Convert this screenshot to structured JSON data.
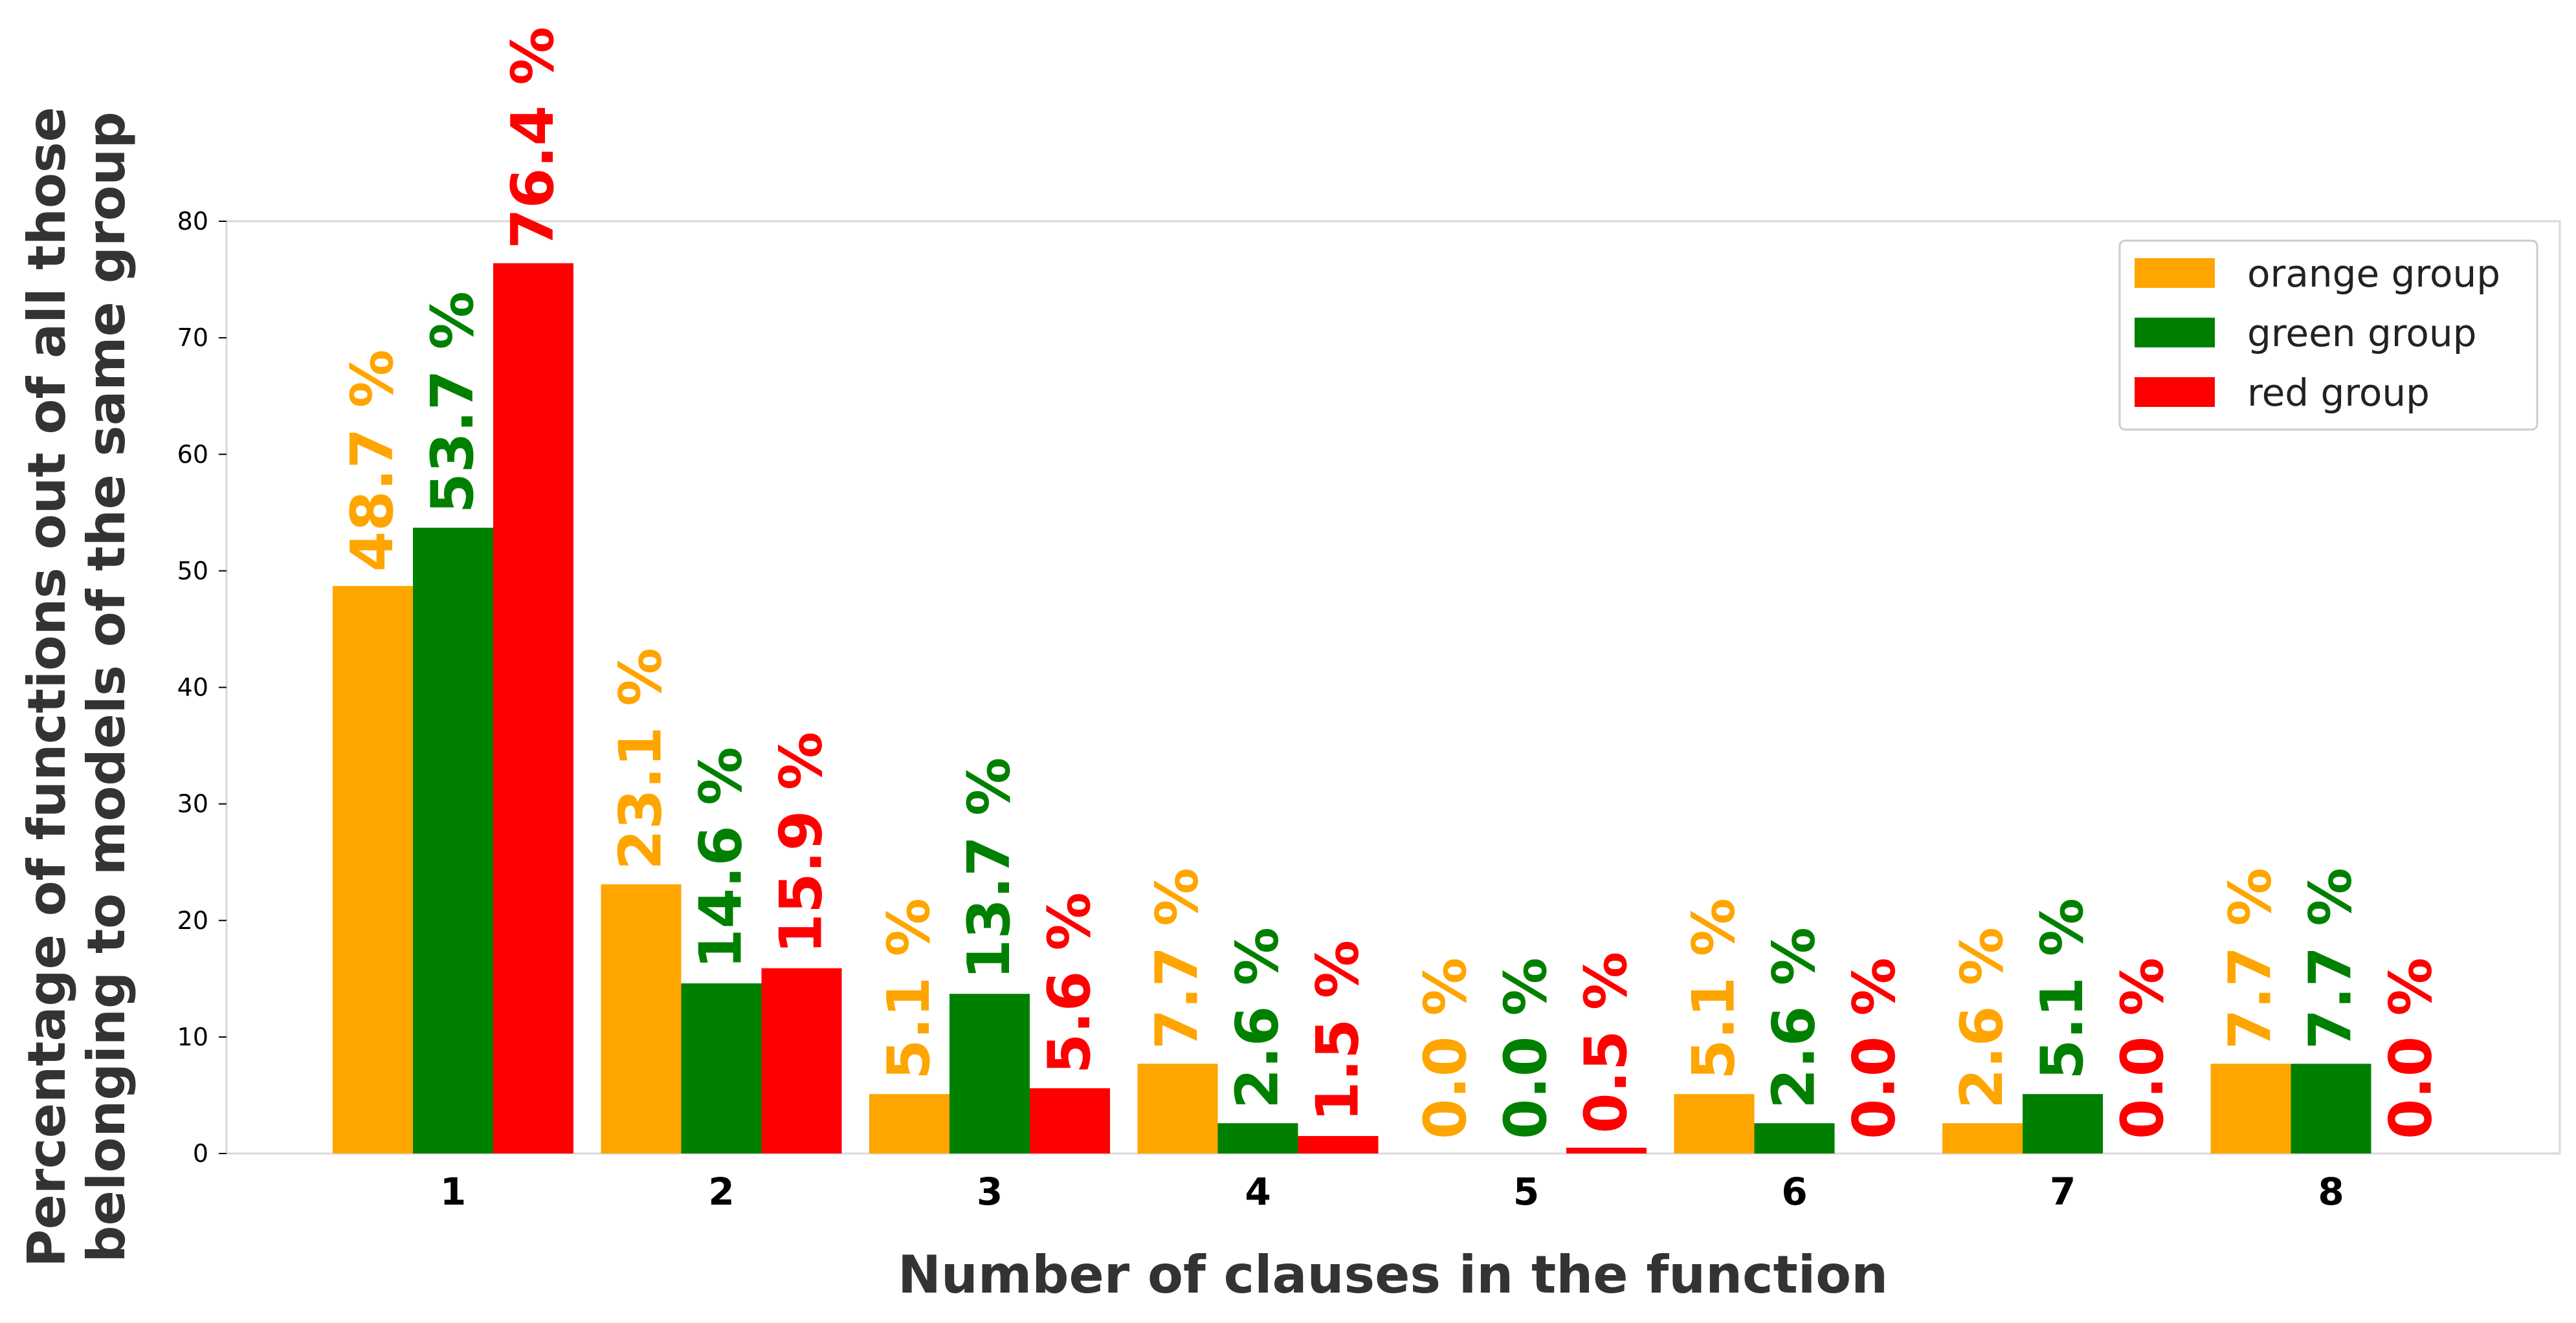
{
  "chart_data": {
    "type": "bar",
    "categories": [
      "1",
      "2",
      "3",
      "4",
      "5",
      "6",
      "7",
      "8"
    ],
    "series": [
      {
        "name": "orange group",
        "color": "#FFA500",
        "values": [
          48.7,
          23.1,
          5.1,
          7.7,
          0.0,
          5.1,
          2.6,
          7.7
        ],
        "labels": [
          "48.7 %",
          "23.1 %",
          "5.1 %",
          "7.7 %",
          "0.0 %",
          "5.1 %",
          "2.6 %",
          "7.7 %"
        ]
      },
      {
        "name": "green group",
        "color": "#008000",
        "values": [
          53.7,
          14.6,
          13.7,
          2.6,
          0.0,
          2.6,
          5.1,
          7.7
        ],
        "labels": [
          "53.7 %",
          "14.6 %",
          "13.7 %",
          "2.6 %",
          "0.0 %",
          "2.6 %",
          "5.1 %",
          "7.7 %"
        ]
      },
      {
        "name": "red group",
        "color": "#FF0000",
        "values": [
          76.4,
          15.9,
          5.6,
          1.5,
          0.5,
          0.0,
          0.0,
          0.0
        ],
        "labels": [
          "76.4 %",
          "15.9 %",
          "5.6 %",
          "1.5 %",
          "0.5 %",
          "0.0 %",
          "0.0 %",
          "0.0 %"
        ]
      }
    ],
    "xlabel": "Number of clauses in the function",
    "ylabel_lines": [
      "Percentage of functions out of all those",
      "belonging to models of the same group"
    ],
    "ylim": [
      0,
      80
    ],
    "yticks": [
      0,
      10,
      20,
      30,
      40,
      50,
      60,
      70,
      80
    ],
    "grid": false,
    "legend_position": "upper right"
  }
}
